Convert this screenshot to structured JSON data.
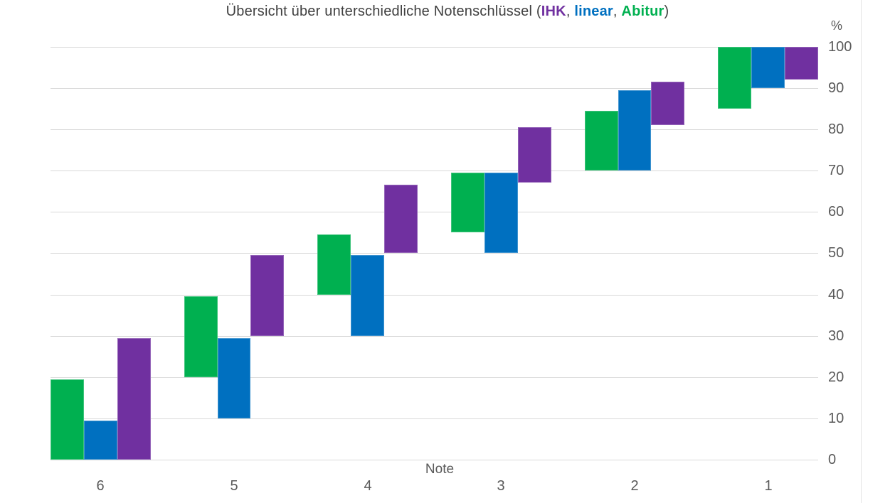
{
  "title": {
    "full_text": "Übersicht über unterschiedliche Notenschlüssel (IHK, linear, Abitur)",
    "parts": [
      {
        "text": "Übersicht über unterschiedliche Notenschlüssel (",
        "color": "#404040",
        "bold": false
      },
      {
        "text": "IHK",
        "color": "#7030A0",
        "bold": true
      },
      {
        "text": ", ",
        "color": "#404040",
        "bold": false
      },
      {
        "text": "linear",
        "color": "#0070C0",
        "bold": true
      },
      {
        "text": ", ",
        "color": "#404040",
        "bold": false
      },
      {
        "text": "Abitur",
        "color": "#00B050",
        "bold": true
      },
      {
        "text": ")",
        "color": "#404040",
        "bold": false
      }
    ]
  },
  "axis": {
    "x_title": "Note",
    "y_title": "%"
  },
  "colors": {
    "ihk": "#7030A0",
    "linear": "#0070C0",
    "abitur": "#00B050",
    "gridline": "#d9d9d9",
    "axis_text": "#595959",
    "title_text": "#404040"
  },
  "chart_data": {
    "type": "bar",
    "variant": "floating-range-columns",
    "title": "Übersicht über unterschiedliche Notenschlüssel (IHK, linear, Abitur)",
    "xlabel": "Note",
    "ylabel": "%",
    "categories": [
      "6",
      "5",
      "4",
      "3",
      "2",
      "1"
    ],
    "ylim": [
      0,
      100
    ],
    "yticks": [
      0,
      10,
      20,
      30,
      40,
      50,
      60,
      70,
      80,
      90,
      100
    ],
    "grid": true,
    "legend_position": "in-title",
    "series": [
      {
        "name": "Abitur",
        "color": "#00B050",
        "ranges": [
          [
            0,
            19.5
          ],
          [
            20,
            39.5
          ],
          [
            40,
            54.5
          ],
          [
            55,
            69.5
          ],
          [
            70,
            84.5
          ],
          [
            85,
            100
          ]
        ]
      },
      {
        "name": "linear",
        "color": "#0070C0",
        "ranges": [
          [
            0,
            9.5
          ],
          [
            10,
            29.5
          ],
          [
            30,
            49.5
          ],
          [
            50,
            69.5
          ],
          [
            70,
            89.5
          ],
          [
            90,
            100
          ]
        ]
      },
      {
        "name": "IHK",
        "color": "#7030A0",
        "ranges": [
          [
            0,
            29.5
          ],
          [
            30,
            49.5
          ],
          [
            50,
            66.5
          ],
          [
            67,
            80.5
          ],
          [
            81,
            91.5
          ],
          [
            92,
            100
          ]
        ]
      }
    ]
  }
}
